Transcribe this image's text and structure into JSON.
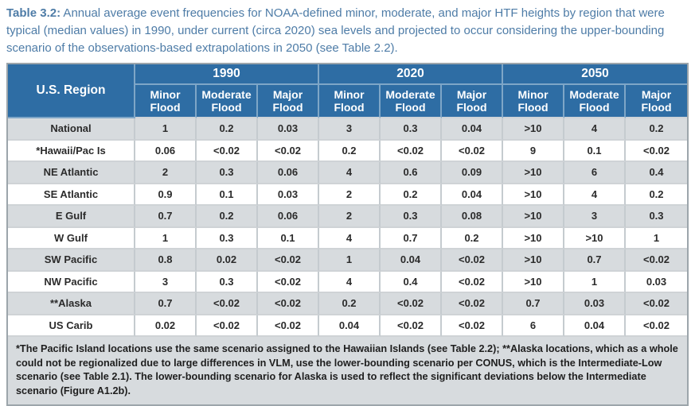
{
  "caption": {
    "label": "Table 3.2:",
    "text": " Annual average event frequencies for NOAA-defined minor, moderate, and major HTF heights by region that were typical (median values) in 1990, under current (circa 2020) sea levels and projected to occur considering the upper-bounding scenario of the observations-based extrapolations in 2050 (see Table 2.2)."
  },
  "table": {
    "region_header": "U.S. Region",
    "year_groups": [
      "1990",
      "2020",
      "2050"
    ],
    "flood_types": [
      "Minor Flood",
      "Moderate Flood",
      "Major Flood"
    ],
    "rows": [
      {
        "region": "National",
        "values": [
          "1",
          "0.2",
          "0.03",
          "3",
          "0.3",
          "0.04",
          ">10",
          "4",
          "0.2"
        ]
      },
      {
        "region": "*Hawaii/Pac Is",
        "values": [
          "0.06",
          "<0.02",
          "<0.02",
          "0.2",
          "<0.02",
          "<0.02",
          "9",
          "0.1",
          "<0.02"
        ]
      },
      {
        "region": "NE Atlantic",
        "values": [
          "2",
          "0.3",
          "0.06",
          "4",
          "0.6",
          "0.09",
          ">10",
          "6",
          "0.4"
        ]
      },
      {
        "region": "SE Atlantic",
        "values": [
          "0.9",
          "0.1",
          "0.03",
          "2",
          "0.2",
          "0.04",
          ">10",
          "4",
          "0.2"
        ]
      },
      {
        "region": "E Gulf",
        "values": [
          "0.7",
          "0.2",
          "0.06",
          "2",
          "0.3",
          "0.08",
          ">10",
          "3",
          "0.3"
        ]
      },
      {
        "region": "W Gulf",
        "values": [
          "1",
          "0.3",
          "0.1",
          "4",
          "0.7",
          "0.2",
          ">10",
          ">10",
          "1"
        ]
      },
      {
        "region": "SW Pacific",
        "values": [
          "0.8",
          "0.02",
          "<0.02",
          "1",
          "0.04",
          "<0.02",
          ">10",
          "0.7",
          "<0.02"
        ]
      },
      {
        "region": "NW Pacific",
        "values": [
          "3",
          "0.3",
          "<0.02",
          "4",
          "0.4",
          "<0.02",
          ">10",
          "1",
          "0.03"
        ]
      },
      {
        "region": "**Alaska",
        "values": [
          "0.7",
          "<0.02",
          "<0.02",
          "0.2",
          "<0.02",
          "<0.02",
          "0.7",
          "0.03",
          "<0.02"
        ]
      },
      {
        "region": "US Carib",
        "values": [
          "0.02",
          "<0.02",
          "<0.02",
          "0.04",
          "<0.02",
          "<0.02",
          "6",
          "0.04",
          "<0.02"
        ]
      }
    ]
  },
  "footnote": "*The Pacific Island locations use the same scenario assigned to the Hawaiian Islands (see Table 2.2); **Alaska locations, which as a whole could not be regionalized due to large differences in VLM, use the lower-bounding scenario per CONUS, which is the Intermediate-Low scenario (see Table 2.1). The lower-bounding scenario for Alaska is used to reflect the significant deviations below the Intermediate scenario (Figure A1.2b).",
  "colors": {
    "header_blue": "#2e6da4",
    "header_divider": "#7ea6c7",
    "shade_row": "#d7dbde",
    "caption_blue": "#4e7ca7",
    "outer_border": "#9ca5ab"
  }
}
